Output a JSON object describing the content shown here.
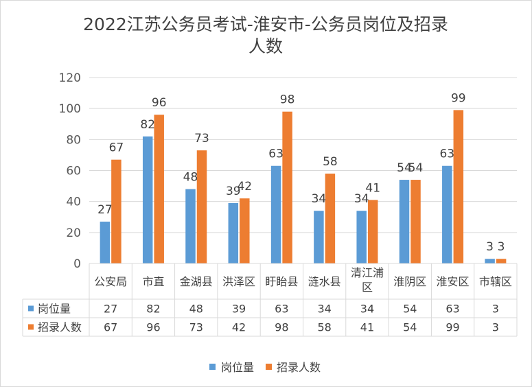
{
  "chart_data": {
    "type": "bar",
    "title_lines": [
      "2022江苏公务员考试-淮安市-公务员岗位及招录",
      "人数"
    ],
    "categories": [
      [
        "公安局"
      ],
      [
        "市直"
      ],
      [
        "金湖县"
      ],
      [
        "洪泽区"
      ],
      [
        "盱眙县"
      ],
      [
        "涟水县"
      ],
      [
        "清江浦",
        "区"
      ],
      [
        "淮阴区"
      ],
      [
        "淮安区"
      ],
      [
        "市辖区"
      ]
    ],
    "series": [
      {
        "name": "岗位量",
        "color": "#5b9bd5",
        "values": [
          27,
          82,
          48,
          39,
          63,
          34,
          34,
          54,
          63,
          3
        ]
      },
      {
        "name": "招录人数",
        "color": "#ed7d31",
        "values": [
          67,
          96,
          73,
          42,
          98,
          58,
          41,
          54,
          99,
          3
        ]
      }
    ],
    "ylim": [
      0,
      120
    ],
    "yticks": [
      0,
      20,
      40,
      60,
      80,
      100,
      120
    ],
    "gridlines": true,
    "data_table": true,
    "legend": "bottom"
  }
}
